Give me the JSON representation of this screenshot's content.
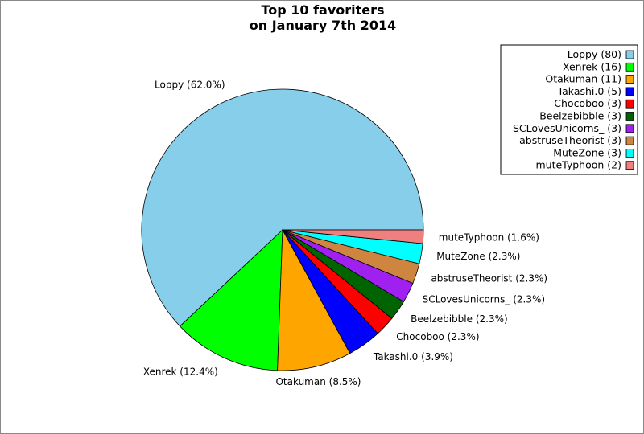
{
  "chart_data": {
    "type": "pie",
    "title_lines": [
      "Top 10 favoriters",
      "on January 7th 2014"
    ],
    "slices": [
      {
        "name": "Loppy",
        "value": 80,
        "percent_label": "Loppy (62.0%)",
        "legend_label": "Loppy (80)",
        "color": "#87CEEB"
      },
      {
        "name": "Xenrek",
        "value": 16,
        "percent_label": "Xenrek (12.4%)",
        "legend_label": "Xenrek (16)",
        "color": "#00FF00"
      },
      {
        "name": "Otakuman",
        "value": 11,
        "percent_label": "Otakuman (8.5%)",
        "legend_label": "Otakuman (11)",
        "color": "#FFA500"
      },
      {
        "name": "Takashi.0",
        "value": 5,
        "percent_label": "Takashi.0 (3.9%)",
        "legend_label": "Takashi.0 (5)",
        "color": "#0000FF"
      },
      {
        "name": "Chocoboo",
        "value": 3,
        "percent_label": "Chocoboo (2.3%)",
        "legend_label": "Chocoboo (3)",
        "color": "#FF0000"
      },
      {
        "name": "Beelzebibble",
        "value": 3,
        "percent_label": "Beelzebibble (2.3%)",
        "legend_label": "Beelzebibble (3)",
        "color": "#006400"
      },
      {
        "name": "SCLovesUnicorns_",
        "value": 3,
        "percent_label": "SCLovesUnicorns_ (2.3%)",
        "legend_label": "SCLovesUnicorns_ (3)",
        "color": "#A020F0"
      },
      {
        "name": "abstruseTheorist",
        "value": 3,
        "percent_label": "abstruseTheorist (2.3%)",
        "legend_label": "abstruseTheorist (3)",
        "color": "#CD853F"
      },
      {
        "name": "MuteZone",
        "value": 3,
        "percent_label": "MuteZone (2.3%)",
        "legend_label": "MuteZone (3)",
        "color": "#00FFFF"
      },
      {
        "name": "muteTyphoon",
        "value": 2,
        "percent_label": "muteTyphoon (1.6%)",
        "legend_label": "muteTyphoon (2)",
        "color": "#F08080"
      }
    ],
    "legend_position": "top-right",
    "start_angle_deg": 0,
    "direction": "clockwise-on-screen-from-3-oclock-reverse"
  }
}
